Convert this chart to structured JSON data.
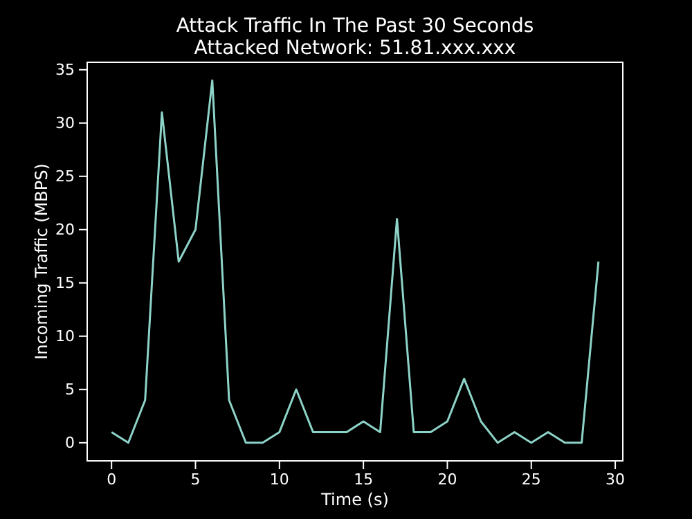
{
  "chart_data": {
    "type": "line",
    "title": "Attack Traffic In The Past 30 Seconds",
    "subtitle": "Attacked Network: 51.81.xxx.xxx",
    "xlabel": "Time (s)",
    "ylabel": "Incoming Traffic (MBPS)",
    "x": [
      0,
      1,
      2,
      3,
      4,
      5,
      6,
      7,
      8,
      9,
      10,
      11,
      12,
      13,
      14,
      15,
      16,
      17,
      18,
      19,
      20,
      21,
      22,
      23,
      24,
      25,
      26,
      27,
      28,
      29
    ],
    "series": [
      {
        "color": "#8dd3c7",
        "values": [
          1,
          0,
          4,
          31,
          17,
          20,
          34,
          4,
          0,
          0,
          1,
          5,
          1,
          1,
          1,
          2,
          1,
          21,
          1,
          1,
          2,
          6,
          2,
          0,
          1,
          0,
          1,
          0,
          0,
          17
        ]
      }
    ],
    "xlim": [
      -1.45,
      30.45
    ],
    "ylim": [
      -1.7,
      35.7
    ],
    "xticks": [
      0,
      5,
      10,
      15,
      20,
      25,
      30
    ],
    "yticks": [
      0,
      5,
      10,
      15,
      20,
      25,
      30,
      35
    ],
    "grid": false,
    "marker": "none",
    "line_style": "solid"
  }
}
